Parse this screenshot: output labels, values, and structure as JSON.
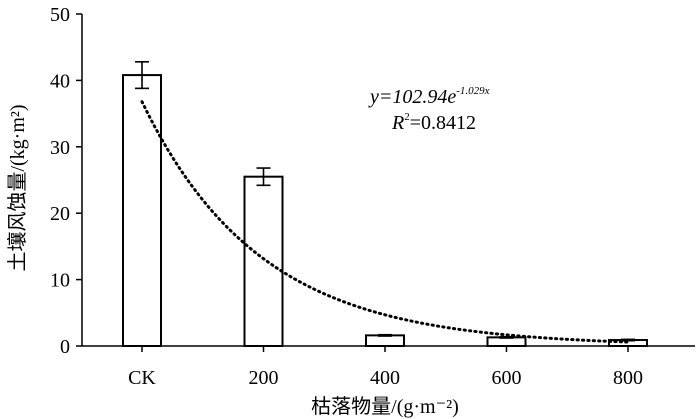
{
  "chart_data": {
    "type": "bar",
    "categories": [
      "CK",
      "200",
      "400",
      "600",
      "800"
    ],
    "values": [
      40.8,
      25.5,
      1.6,
      1.3,
      0.9
    ],
    "error": [
      2.0,
      1.3,
      0.1,
      0.1,
      0.1
    ],
    "ylim": [
      0,
      50
    ],
    "yticks": [
      0,
      10,
      20,
      30,
      40,
      50
    ],
    "ylabel": "土壤风蚀量/(kg·m²)",
    "xlabel": "枯落物量/(g·m⁻²)",
    "bar_fill": "#ffffff",
    "bar_stroke": "#000000",
    "fit": {
      "style": "dotted",
      "color": "#000000",
      "a": 102.94,
      "b": 1.029,
      "equation_prefix": "y=102.94e",
      "equation_exponent": "-1.029x",
      "r2_label": "R",
      "r2_sup": "2",
      "r2_value": "=0.8412"
    }
  }
}
